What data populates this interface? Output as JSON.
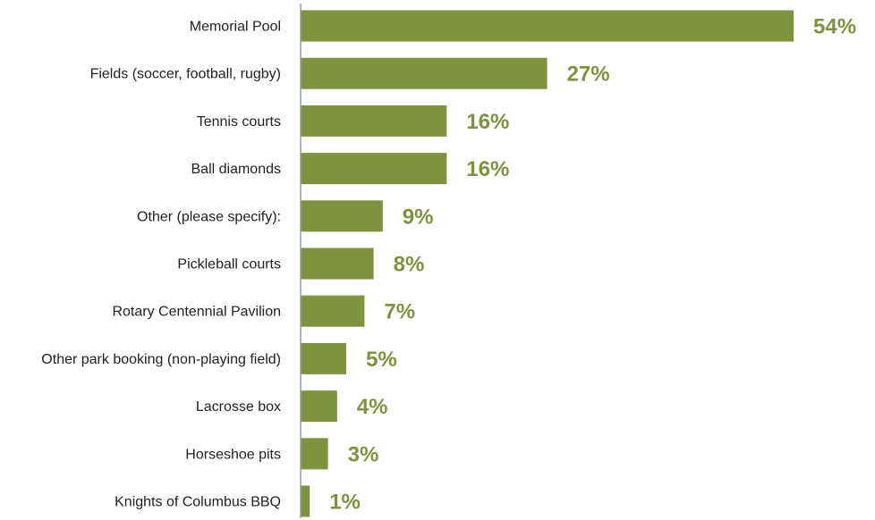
{
  "chart_data": {
    "type": "bar",
    "orientation": "horizontal",
    "categories": [
      "Memorial Pool",
      "Fields (soccer, football, rugby)",
      "Tennis courts",
      "Ball diamonds",
      "Other (please specify):",
      "Pickleball courts",
      "Rotary Centennial Pavilion",
      "Other park booking (non-playing field)",
      "Lacrosse box",
      "Horseshoe pits",
      "Knights of Columbus BBQ"
    ],
    "values": [
      54,
      27,
      16,
      16,
      9,
      8,
      7,
      5,
      4,
      3,
      1
    ],
    "value_labels": [
      "54%",
      "27%",
      "16%",
      "16%",
      "9%",
      "8%",
      "7%",
      "5%",
      "4%",
      "3%",
      "1%"
    ],
    "unit": "%",
    "xlim": [
      0,
      54
    ],
    "grid": false,
    "legend": "none",
    "colors": {
      "bar": "#7f933c",
      "value_label": "#7f933c",
      "axis": "#8ea2b8",
      "category_text": "#222222"
    }
  }
}
